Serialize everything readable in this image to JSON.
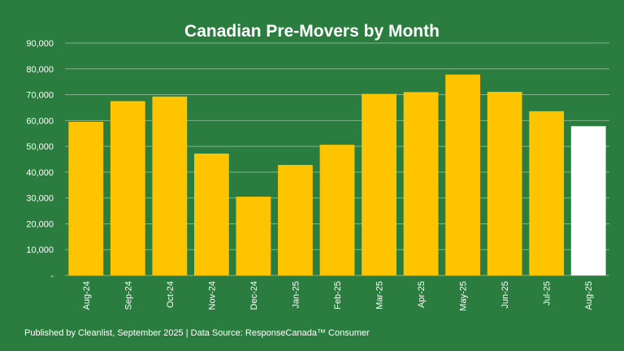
{
  "chart_data": {
    "type": "bar",
    "title": "Canadian Pre-Movers by Month",
    "categories": [
      "Aug-24",
      "Sep-24",
      "Oct-24",
      "Nov-24",
      "Dec-24",
      "Jan-25",
      "Feb-25",
      "Mar-25",
      "Apr-25",
      "May-25",
      "Jun-25",
      "Jul-25",
      "Aug-25"
    ],
    "values": [
      59500,
      67500,
      69300,
      47200,
      30500,
      42800,
      50600,
      70300,
      71000,
      77800,
      71100,
      63600,
      57800
    ],
    "ylim": [
      0,
      90000
    ],
    "yticks": [
      {
        "value": 0,
        "label": "-"
      },
      {
        "value": 10000,
        "label": "10,000"
      },
      {
        "value": 20000,
        "label": "20,000"
      },
      {
        "value": 30000,
        "label": "30,000"
      },
      {
        "value": 40000,
        "label": "40,000"
      },
      {
        "value": 50000,
        "label": "50,000"
      },
      {
        "value": 60000,
        "label": "60,000"
      },
      {
        "value": 70000,
        "label": "70,000"
      },
      {
        "value": 80000,
        "label": "80,000"
      },
      {
        "value": 90000,
        "label": "90,000"
      }
    ],
    "xlabel": "",
    "ylabel": "",
    "grid": true,
    "colors": {
      "background": "#2a7d3f",
      "bar": "#ffc400",
      "highlight_bar": "#ffffff",
      "grid": "#7fb38d",
      "text": "#ffffff"
    },
    "highlight_category": "Aug-25"
  },
  "footer": "Published by Cleanlist, September 2025 | Data Source: ResponseCanada™ Consumer"
}
